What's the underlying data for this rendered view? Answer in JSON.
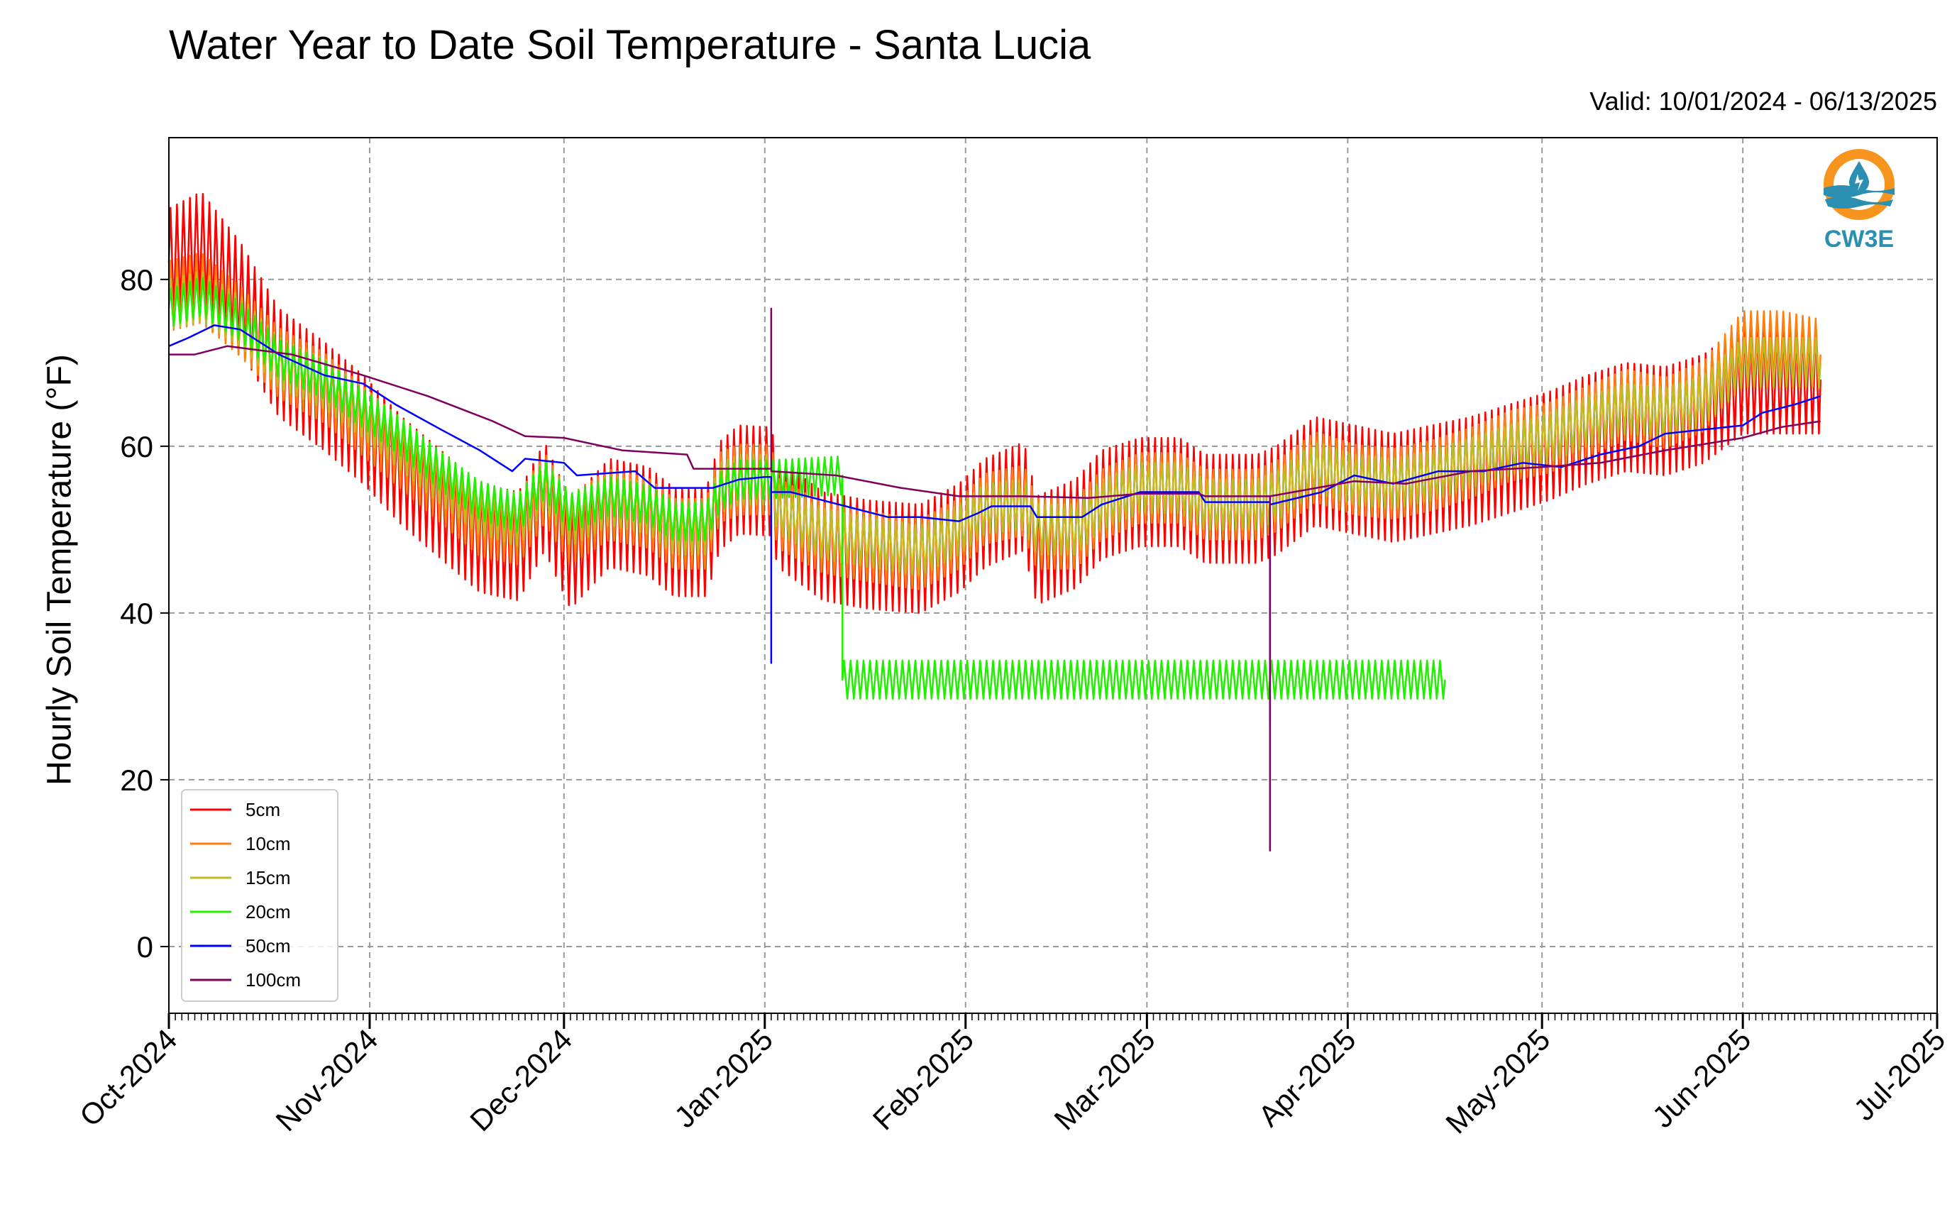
{
  "chart_data": {
    "type": "line",
    "title": "Water Year to Date Soil Temperature - Santa Lucia",
    "subtitle": "Valid: 10/01/2024 - 06/13/2025",
    "xlabel": "",
    "ylabel": "Hourly Soil Temperature (°F)",
    "xlim": [
      "2024-10-01",
      "2025-07-01"
    ],
    "ylim": [
      -8,
      97
    ],
    "y_ticks": [
      0,
      20,
      40,
      60,
      80
    ],
    "x_ticks": [
      "Oct-2024",
      "Nov-2024",
      "Dec-2024",
      "Jan-2025",
      "Feb-2025",
      "Mar-2025",
      "Apr-2025",
      "May-2025",
      "Jun-2025",
      "Jul-2025"
    ],
    "grid": true,
    "legend_position": "lower-left",
    "logo_text": "CW3E",
    "series": [
      {
        "name": "5cm",
        "color": "#ff0000",
        "amplitude": 6.5,
        "points": [
          [
            "2024-10-01",
            82
          ],
          [
            "2024-10-06",
            84
          ],
          [
            "2024-10-12",
            78
          ],
          [
            "2024-10-18",
            70
          ],
          [
            "2024-10-25",
            66
          ],
          [
            "2024-10-31",
            62
          ],
          [
            "2024-11-06",
            57
          ],
          [
            "2024-11-12",
            53
          ],
          [
            "2024-11-18",
            49
          ],
          [
            "2024-11-24",
            48
          ],
          [
            "2024-11-28",
            54
          ],
          [
            "2024-12-02",
            47
          ],
          [
            "2024-12-08",
            52
          ],
          [
            "2024-12-14",
            51
          ],
          [
            "2024-12-18",
            48.5
          ],
          [
            "2024-12-23",
            48.5
          ],
          [
            "2024-12-25",
            54
          ],
          [
            "2024-12-28",
            56
          ],
          [
            "2025-01-01",
            55.8
          ],
          [
            "2025-01-02",
            55.8
          ],
          [
            "2025-01-03",
            52
          ],
          [
            "2025-01-10",
            48
          ],
          [
            "2025-01-17",
            47
          ],
          [
            "2025-01-25",
            46.5
          ],
          [
            "2025-01-31",
            49
          ],
          [
            "2025-02-04",
            52
          ],
          [
            "2025-02-10",
            54
          ],
          [
            "2025-02-12",
            47.5
          ],
          [
            "2025-02-18",
            49.5
          ],
          [
            "2025-02-22",
            53
          ],
          [
            "2025-02-28",
            54.5
          ],
          [
            "2025-03-06",
            54.5
          ],
          [
            "2025-03-10",
            52.5
          ],
          [
            "2025-03-18",
            52.5
          ],
          [
            "2025-03-21",
            53.5
          ],
          [
            "2025-03-27",
            57
          ],
          [
            "2025-04-02",
            56
          ],
          [
            "2025-04-08",
            55
          ],
          [
            "2025-04-14",
            56
          ],
          [
            "2025-04-20",
            57
          ],
          [
            "2025-04-26",
            58.5
          ],
          [
            "2025-05-02",
            60
          ],
          [
            "2025-05-08",
            62
          ],
          [
            "2025-05-14",
            63.5
          ],
          [
            "2025-05-20",
            63
          ],
          [
            "2025-05-26",
            64.5
          ],
          [
            "2025-06-01",
            68
          ],
          [
            "2025-06-07",
            68
          ],
          [
            "2025-06-13",
            68
          ]
        ]
      },
      {
        "name": "10cm",
        "color": "#ff7f0e",
        "amplitude": 4.2,
        "points": [
          [
            "2024-10-01",
            78
          ],
          [
            "2024-10-06",
            79
          ],
          [
            "2024-10-12",
            75
          ],
          [
            "2024-10-18",
            70
          ],
          [
            "2024-10-25",
            67
          ],
          [
            "2024-10-31",
            63
          ],
          [
            "2024-11-06",
            59
          ],
          [
            "2024-11-12",
            55
          ],
          [
            "2024-11-18",
            51
          ],
          [
            "2024-11-24",
            50
          ],
          [
            "2024-11-28",
            55
          ],
          [
            "2024-12-02",
            50
          ],
          [
            "2024-12-08",
            53
          ],
          [
            "2024-12-14",
            52
          ],
          [
            "2024-12-18",
            49.5
          ],
          [
            "2024-12-23",
            49.5
          ],
          [
            "2024-12-25",
            55
          ],
          [
            "2024-12-28",
            56
          ],
          [
            "2025-01-01",
            56
          ],
          [
            "2025-01-02",
            56
          ],
          [
            "2025-01-03",
            52
          ],
          [
            "2025-01-10",
            49
          ],
          [
            "2025-01-17",
            48
          ],
          [
            "2025-01-25",
            47
          ],
          [
            "2025-01-31",
            49.5
          ],
          [
            "2025-02-04",
            52.5
          ],
          [
            "2025-02-10",
            53.5
          ],
          [
            "2025-02-12",
            49.5
          ],
          [
            "2025-02-18",
            49.5
          ],
          [
            "2025-02-22",
            53
          ],
          [
            "2025-02-28",
            55
          ],
          [
            "2025-03-06",
            55
          ],
          [
            "2025-03-10",
            53
          ],
          [
            "2025-03-18",
            53
          ],
          [
            "2025-03-21",
            54
          ],
          [
            "2025-03-27",
            57.5
          ],
          [
            "2025-04-02",
            56
          ],
          [
            "2025-04-08",
            55.5
          ],
          [
            "2025-04-14",
            56.5
          ],
          [
            "2025-04-20",
            58
          ],
          [
            "2025-04-26",
            60
          ],
          [
            "2025-05-02",
            61
          ],
          [
            "2025-05-08",
            63
          ],
          [
            "2025-05-14",
            65
          ],
          [
            "2025-05-20",
            64
          ],
          [
            "2025-05-26",
            66
          ],
          [
            "2025-06-01",
            72
          ],
          [
            "2025-06-07",
            72
          ],
          [
            "2025-06-13",
            71
          ]
        ]
      },
      {
        "name": "15cm",
        "color": "#bcbd22",
        "amplitude": 3.0,
        "points": [
          [
            "2024-10-01",
            77
          ],
          [
            "2024-10-06",
            78
          ],
          [
            "2024-10-12",
            75
          ],
          [
            "2024-10-18",
            70
          ],
          [
            "2024-10-25",
            67.5
          ],
          [
            "2024-10-31",
            64
          ],
          [
            "2024-11-06",
            60
          ],
          [
            "2024-11-12",
            56
          ],
          [
            "2024-11-18",
            52.5
          ],
          [
            "2024-11-24",
            51
          ],
          [
            "2024-11-28",
            55.5
          ],
          [
            "2024-12-02",
            51
          ],
          [
            "2024-12-08",
            53.5
          ],
          [
            "2024-12-14",
            52.5
          ],
          [
            "2024-12-18",
            50
          ],
          [
            "2024-12-23",
            50
          ],
          [
            "2024-12-25",
            55
          ],
          [
            "2024-12-28",
            56
          ],
          [
            "2025-01-01",
            56
          ],
          [
            "2025-01-02",
            56
          ],
          [
            "2025-01-03",
            52.5
          ],
          [
            "2025-01-10",
            49.5
          ],
          [
            "2025-01-17",
            48.5
          ],
          [
            "2025-01-25",
            47.5
          ],
          [
            "2025-01-31",
            50
          ],
          [
            "2025-02-04",
            52.5
          ],
          [
            "2025-02-10",
            53
          ],
          [
            "2025-02-12",
            50
          ],
          [
            "2025-02-18",
            50
          ],
          [
            "2025-02-22",
            53
          ],
          [
            "2025-02-28",
            55
          ],
          [
            "2025-03-06",
            55
          ],
          [
            "2025-03-10",
            53
          ],
          [
            "2025-03-18",
            53
          ],
          [
            "2025-03-21",
            54
          ],
          [
            "2025-03-27",
            57.5
          ],
          [
            "2025-04-02",
            56
          ],
          [
            "2025-04-08",
            55.5
          ],
          [
            "2025-04-14",
            56.5
          ],
          [
            "2025-04-20",
            58
          ],
          [
            "2025-04-26",
            59.5
          ],
          [
            "2025-05-02",
            61
          ],
          [
            "2025-05-08",
            63
          ],
          [
            "2025-05-14",
            64.5
          ],
          [
            "2025-05-20",
            64
          ],
          [
            "2025-05-26",
            65.5
          ],
          [
            "2025-06-01",
            70
          ],
          [
            "2025-06-07",
            70
          ],
          [
            "2025-06-13",
            70
          ]
        ]
      },
      {
        "name": "20cm",
        "color": "#22ee00",
        "amplitude": 2.3,
        "points": [
          [
            "2024-10-01",
            76.5
          ],
          [
            "2024-10-06",
            78
          ],
          [
            "2024-10-12",
            75
          ],
          [
            "2024-10-18",
            70.5
          ],
          [
            "2024-10-25",
            68
          ],
          [
            "2024-10-31",
            64.5
          ],
          [
            "2024-11-06",
            61
          ],
          [
            "2024-11-12",
            57
          ],
          [
            "2024-11-18",
            53.5
          ],
          [
            "2024-11-24",
            52
          ],
          [
            "2024-11-28",
            56
          ],
          [
            "2024-12-02",
            52
          ],
          [
            "2024-12-08",
            54
          ],
          [
            "2024-12-14",
            53
          ],
          [
            "2024-12-18",
            51
          ],
          [
            "2024-12-23",
            51
          ],
          [
            "2024-12-25",
            54.5
          ],
          [
            "2024-12-28",
            56
          ],
          [
            "2025-01-01",
            56
          ],
          [
            "2025-01-13",
            56.5
          ],
          [
            "2025-01-13",
            32
          ],
          [
            "2025-04-16",
            32
          ]
        ]
      },
      {
        "name": "50cm",
        "color": "#0000ff",
        "amplitude": 0,
        "points": [
          [
            "2024-10-01",
            72
          ],
          [
            "2024-10-04",
            73
          ],
          [
            "2024-10-08",
            74.5
          ],
          [
            "2024-10-12",
            74
          ],
          [
            "2024-10-18",
            71
          ],
          [
            "2024-10-25",
            68.5
          ],
          [
            "2024-10-31",
            67.5
          ],
          [
            "2024-11-05",
            65
          ],
          [
            "2024-11-12",
            62
          ],
          [
            "2024-11-18",
            59.5
          ],
          [
            "2024-11-23",
            57
          ],
          [
            "2024-11-25",
            58.5
          ],
          [
            "2024-12-01",
            58
          ],
          [
            "2024-12-03",
            56.5
          ],
          [
            "2024-12-12",
            57
          ],
          [
            "2024-12-15",
            55
          ],
          [
            "2024-12-22",
            55
          ],
          [
            "2024-12-24",
            55
          ],
          [
            "2024-12-28",
            56
          ],
          [
            "2025-01-01",
            56.3
          ],
          [
            "2025-01-02",
            56.3
          ],
          [
            "2025-01-02",
            34
          ],
          [
            "2025-01-02",
            54.5
          ],
          [
            "2025-01-05",
            54.5
          ],
          [
            "2025-01-10",
            53.5
          ],
          [
            "2025-01-15",
            52.5
          ],
          [
            "2025-01-20",
            51.5
          ],
          [
            "2025-01-25",
            51.5
          ],
          [
            "2025-01-31",
            51
          ],
          [
            "2025-02-03",
            52
          ],
          [
            "2025-02-05",
            52.8
          ],
          [
            "2025-02-11",
            52.8
          ],
          [
            "2025-02-12",
            51.5
          ],
          [
            "2025-02-19",
            51.5
          ],
          [
            "2025-02-22",
            53
          ],
          [
            "2025-02-28",
            54.5
          ],
          [
            "2025-03-09",
            54.5
          ],
          [
            "2025-03-10",
            53.3
          ],
          [
            "2025-03-20",
            53.3
          ],
          [
            "2025-03-20",
            27
          ],
          [
            "2025-03-20",
            53
          ],
          [
            "2025-03-28",
            54.5
          ],
          [
            "2025-04-02",
            56.5
          ],
          [
            "2025-04-08",
            55.5
          ],
          [
            "2025-04-15",
            57
          ],
          [
            "2025-04-22",
            57
          ],
          [
            "2025-04-28",
            58
          ],
          [
            "2025-05-04",
            57.5
          ],
          [
            "2025-05-10",
            59
          ],
          [
            "2025-05-16",
            60
          ],
          [
            "2025-05-20",
            61.5
          ],
          [
            "2025-05-26",
            62
          ],
          [
            "2025-06-01",
            62.5
          ],
          [
            "2025-06-04",
            64
          ],
          [
            "2025-06-09",
            65
          ],
          [
            "2025-06-13",
            66
          ]
        ]
      },
      {
        "name": "100cm",
        "color": "#800060",
        "amplitude": 0,
        "points": [
          [
            "2024-10-01",
            71
          ],
          [
            "2024-10-05",
            71
          ],
          [
            "2024-10-10",
            72
          ],
          [
            "2024-10-20",
            71
          ],
          [
            "2024-10-31",
            68.5
          ],
          [
            "2024-11-10",
            66
          ],
          [
            "2024-11-20",
            63
          ],
          [
            "2024-11-25",
            61.2
          ],
          [
            "2024-12-01",
            61
          ],
          [
            "2024-12-10",
            59.5
          ],
          [
            "2024-12-20",
            59
          ],
          [
            "2024-12-21",
            57.3
          ],
          [
            "2025-01-01",
            57.3
          ],
          [
            "2025-01-02",
            57.3
          ],
          [
            "2025-01-02",
            76.5
          ],
          [
            "2025-01-02",
            57
          ],
          [
            "2025-01-12",
            56.5
          ],
          [
            "2025-01-22",
            55
          ],
          [
            "2025-01-31",
            54
          ],
          [
            "2025-02-10",
            54
          ],
          [
            "2025-02-20",
            53.8
          ],
          [
            "2025-02-28",
            54.3
          ],
          [
            "2025-03-09",
            54.3
          ],
          [
            "2025-03-10",
            54
          ],
          [
            "2025-03-20",
            54
          ],
          [
            "2025-03-20",
            11.5
          ],
          [
            "2025-03-20",
            28
          ],
          [
            "2025-03-20",
            54
          ],
          [
            "2025-04-02",
            55.8
          ],
          [
            "2025-04-10",
            55.5
          ],
          [
            "2025-04-20",
            57
          ],
          [
            "2025-05-01",
            57.5
          ],
          [
            "2025-05-10",
            58
          ],
          [
            "2025-05-20",
            59.5
          ],
          [
            "2025-06-01",
            61
          ],
          [
            "2025-06-07",
            62.3
          ],
          [
            "2025-06-13",
            63
          ]
        ]
      }
    ]
  }
}
